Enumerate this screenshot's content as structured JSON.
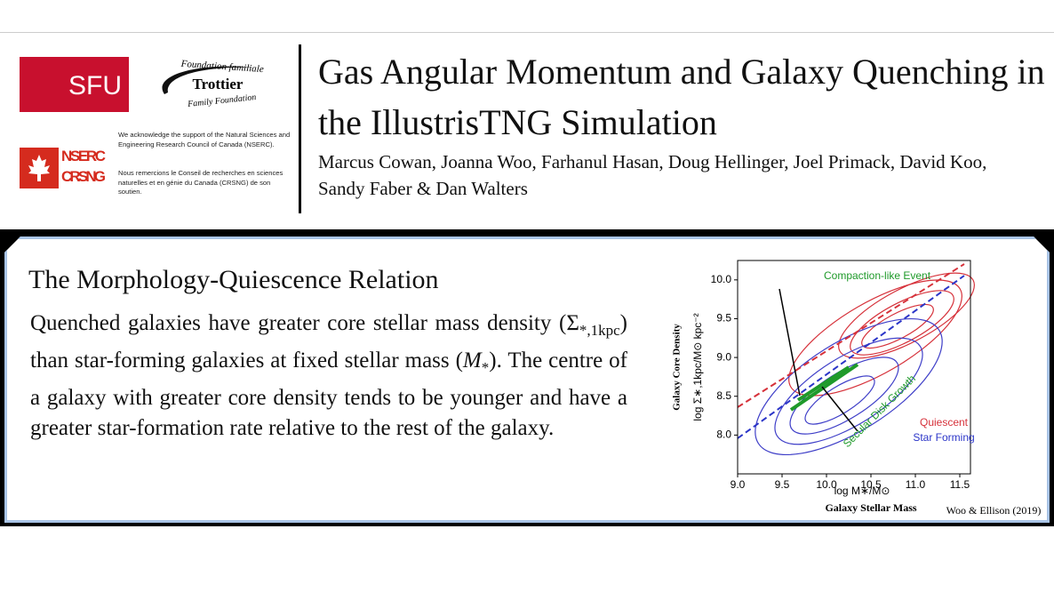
{
  "header": {
    "logos": {
      "sfu": "SFU",
      "trottier": [
        "Foundation familiale",
        "Trottier",
        "Family Foundation"
      ],
      "nserc": [
        "NSERC",
        "CRSNG"
      ]
    },
    "acknowledgement_en": "We acknowledge the support of the Natural Sciences and Engineering Research Council of Canada (NSERC).",
    "acknowledgement_fr": "Nous remercions le Conseil de recherches en sciences naturelles et en génie du Canada (CRSNG) de son soutien.",
    "title": "Gas Angular Momentum and Galaxy Quenching in the IllustrisTNG Simulation",
    "authors": "Marcus Cowan, Joanna Woo, Farhanul Hasan, Doug Hellinger, Joel Primack, David Koo, Sandy Faber & Dan Walters"
  },
  "section": {
    "heading": "The Morphology-Quiescence Relation",
    "body": [
      "Quenched galaxies have greater core stellar mass density (",
      "Σ",
      "*,1kpc",
      ") than star-forming galaxies at fixed stellar mass (",
      "M",
      "*",
      "). The centre of a galaxy with greater core density tends to be younger and have a greater star-formation rate relative to the rest of the galaxy."
    ]
  },
  "figure": {
    "x_label": "log M∗/M⊙",
    "x_title": "Galaxy Stellar Mass",
    "y_label": "log Σ∗,1kpc/M⊙ kpc⁻²",
    "y_title": "Galaxy Core Density",
    "xlim": [
      9.0,
      11.62
    ],
    "ylim": [
      7.5,
      10.25
    ],
    "xticks": [
      {
        "value": 9,
        "label": "9.0"
      },
      9.5,
      {
        "value": 10,
        "label": "10.0"
      },
      10.5,
      {
        "value": 11,
        "label": "11.0"
      },
      11.5
    ],
    "yticks": [
      {
        "value": 8,
        "label": "8.0"
      },
      8.5,
      {
        "value": 9,
        "label": "9.0"
      },
      9.5,
      {
        "value": 10,
        "label": "10.0"
      }
    ],
    "annotations": [
      "Compaction-like Event",
      "Secular Disk Growth"
    ],
    "legend": [
      {
        "name": "Quiescent",
        "color": "#d6313a"
      },
      {
        "name": "Star Forming",
        "color": "#2b35c8"
      }
    ],
    "credit": "Woo & Ellison (2019)"
  }
}
